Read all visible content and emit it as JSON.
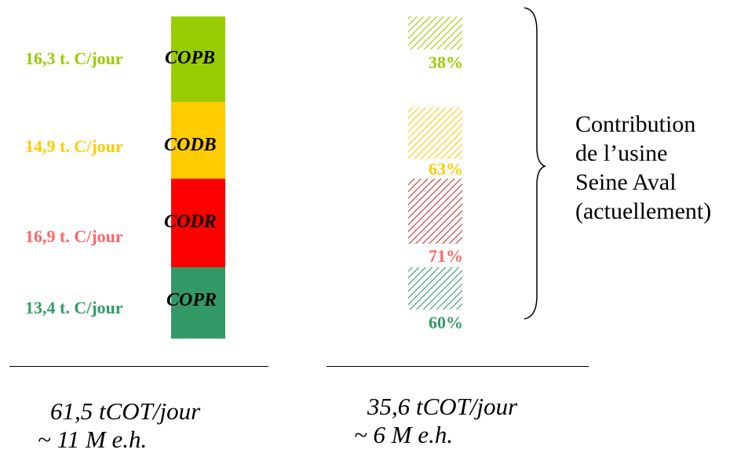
{
  "colors": {
    "copb": "#99cc00",
    "codb": "#ffcc00",
    "codr": "#ff0000",
    "copr": "#339966",
    "copb_text": "#99cc00",
    "codb_text": "#ffcc00",
    "codr_text": "#ff6666",
    "copr_text": "#339966"
  },
  "segments": [
    {
      "key": "copb",
      "name": "COPB",
      "value_label": "16,3 t. C/jour",
      "pct_label": "38%"
    },
    {
      "key": "codb",
      "name": "CODB",
      "value_label": "14,9 t. C/jour",
      "pct_label": "63%"
    },
    {
      "key": "codr",
      "name": "CODR",
      "value_label": "16,9 t. C/jour",
      "pct_label": "71%"
    },
    {
      "key": "copr",
      "name": "COPR",
      "value_label": "13,4 t. C/jour",
      "pct_label": "60%"
    }
  ],
  "totals": {
    "left_line1": "61,5 tCOT/jour",
    "left_line2": "~ 11 M e.h.",
    "right_line1": "35,6 tCOT/jour",
    "right_line2": "~ 6 M e.h."
  },
  "contribution": {
    "line1": "Contribution",
    "line2": "de l’usine",
    "line3": "Seine Aval",
    "line4": "(actuellement)"
  }
}
